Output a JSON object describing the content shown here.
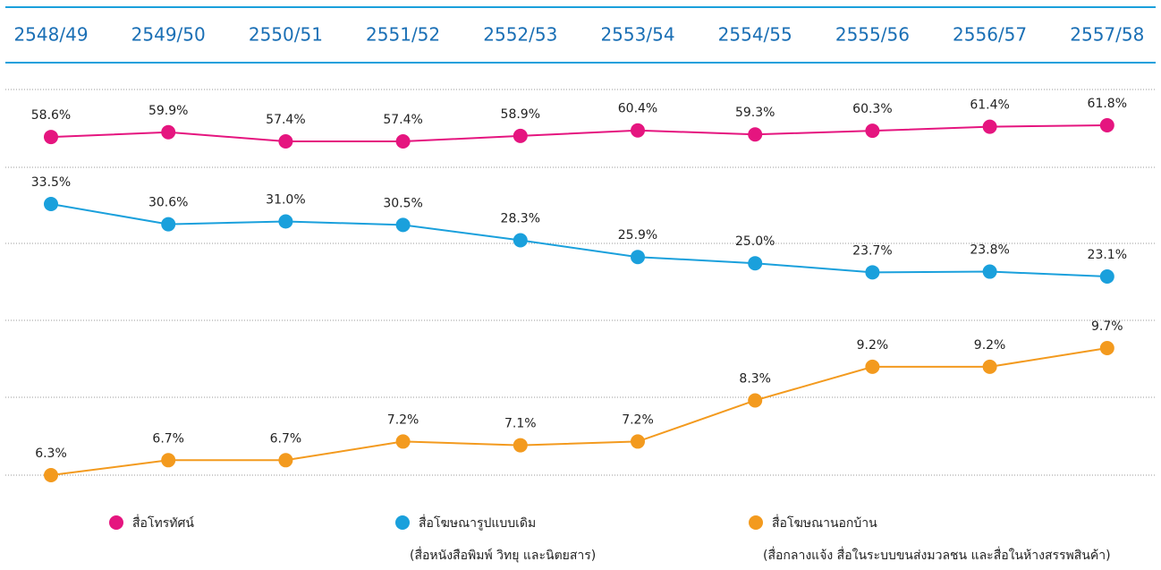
{
  "chart_data": {
    "type": "line",
    "categories": [
      "2548/49",
      "2549/50",
      "2550/51",
      "2551/52",
      "2552/53",
      "2553/54",
      "2554/55",
      "2555/56",
      "2556/57",
      "2557/58"
    ],
    "series": [
      {
        "name": "สื่อโทรทัศน์",
        "color": "#e5157f",
        "values": [
          58.6,
          59.9,
          57.4,
          57.4,
          58.9,
          60.4,
          59.3,
          60.3,
          61.4,
          61.8
        ],
        "value_labels": [
          "58.6%",
          "59.9%",
          "57.4%",
          "57.4%",
          "58.9%",
          "60.4%",
          "59.3%",
          "60.3%",
          "61.4%",
          "61.8%"
        ]
      },
      {
        "name": "สื่อโฆษณารูปแบบเดิม",
        "note": "(สื่อหนังสือพิมพ์ วิทยุ และนิตยสาร)",
        "color": "#1aa0dc",
        "values": [
          33.5,
          30.6,
          31.0,
          30.5,
          28.3,
          25.9,
          25.0,
          23.7,
          23.8,
          23.1
        ],
        "value_labels": [
          "33.5%",
          "30.6%",
          "31.0%",
          "30.5%",
          "28.3%",
          "25.9%",
          "25.0%",
          "23.7%",
          "23.8%",
          "23.1%"
        ]
      },
      {
        "name": "สื่อโฆษณานอกบ้าน",
        "note": "(สื่อกลางแจ้ง สื่อในระบบขนส่งมวลชน และสื่อในห้างสรรพสินค้า)",
        "color": "#f39a1e",
        "values": [
          6.3,
          6.7,
          6.7,
          7.2,
          7.1,
          7.2,
          8.3,
          9.2,
          9.2,
          9.7
        ],
        "value_labels": [
          "6.3%",
          "6.7%",
          "6.7%",
          "7.2%",
          "7.1%",
          "7.2%",
          "8.3%",
          "9.2%",
          "9.2%",
          "9.7%"
        ]
      }
    ]
  }
}
